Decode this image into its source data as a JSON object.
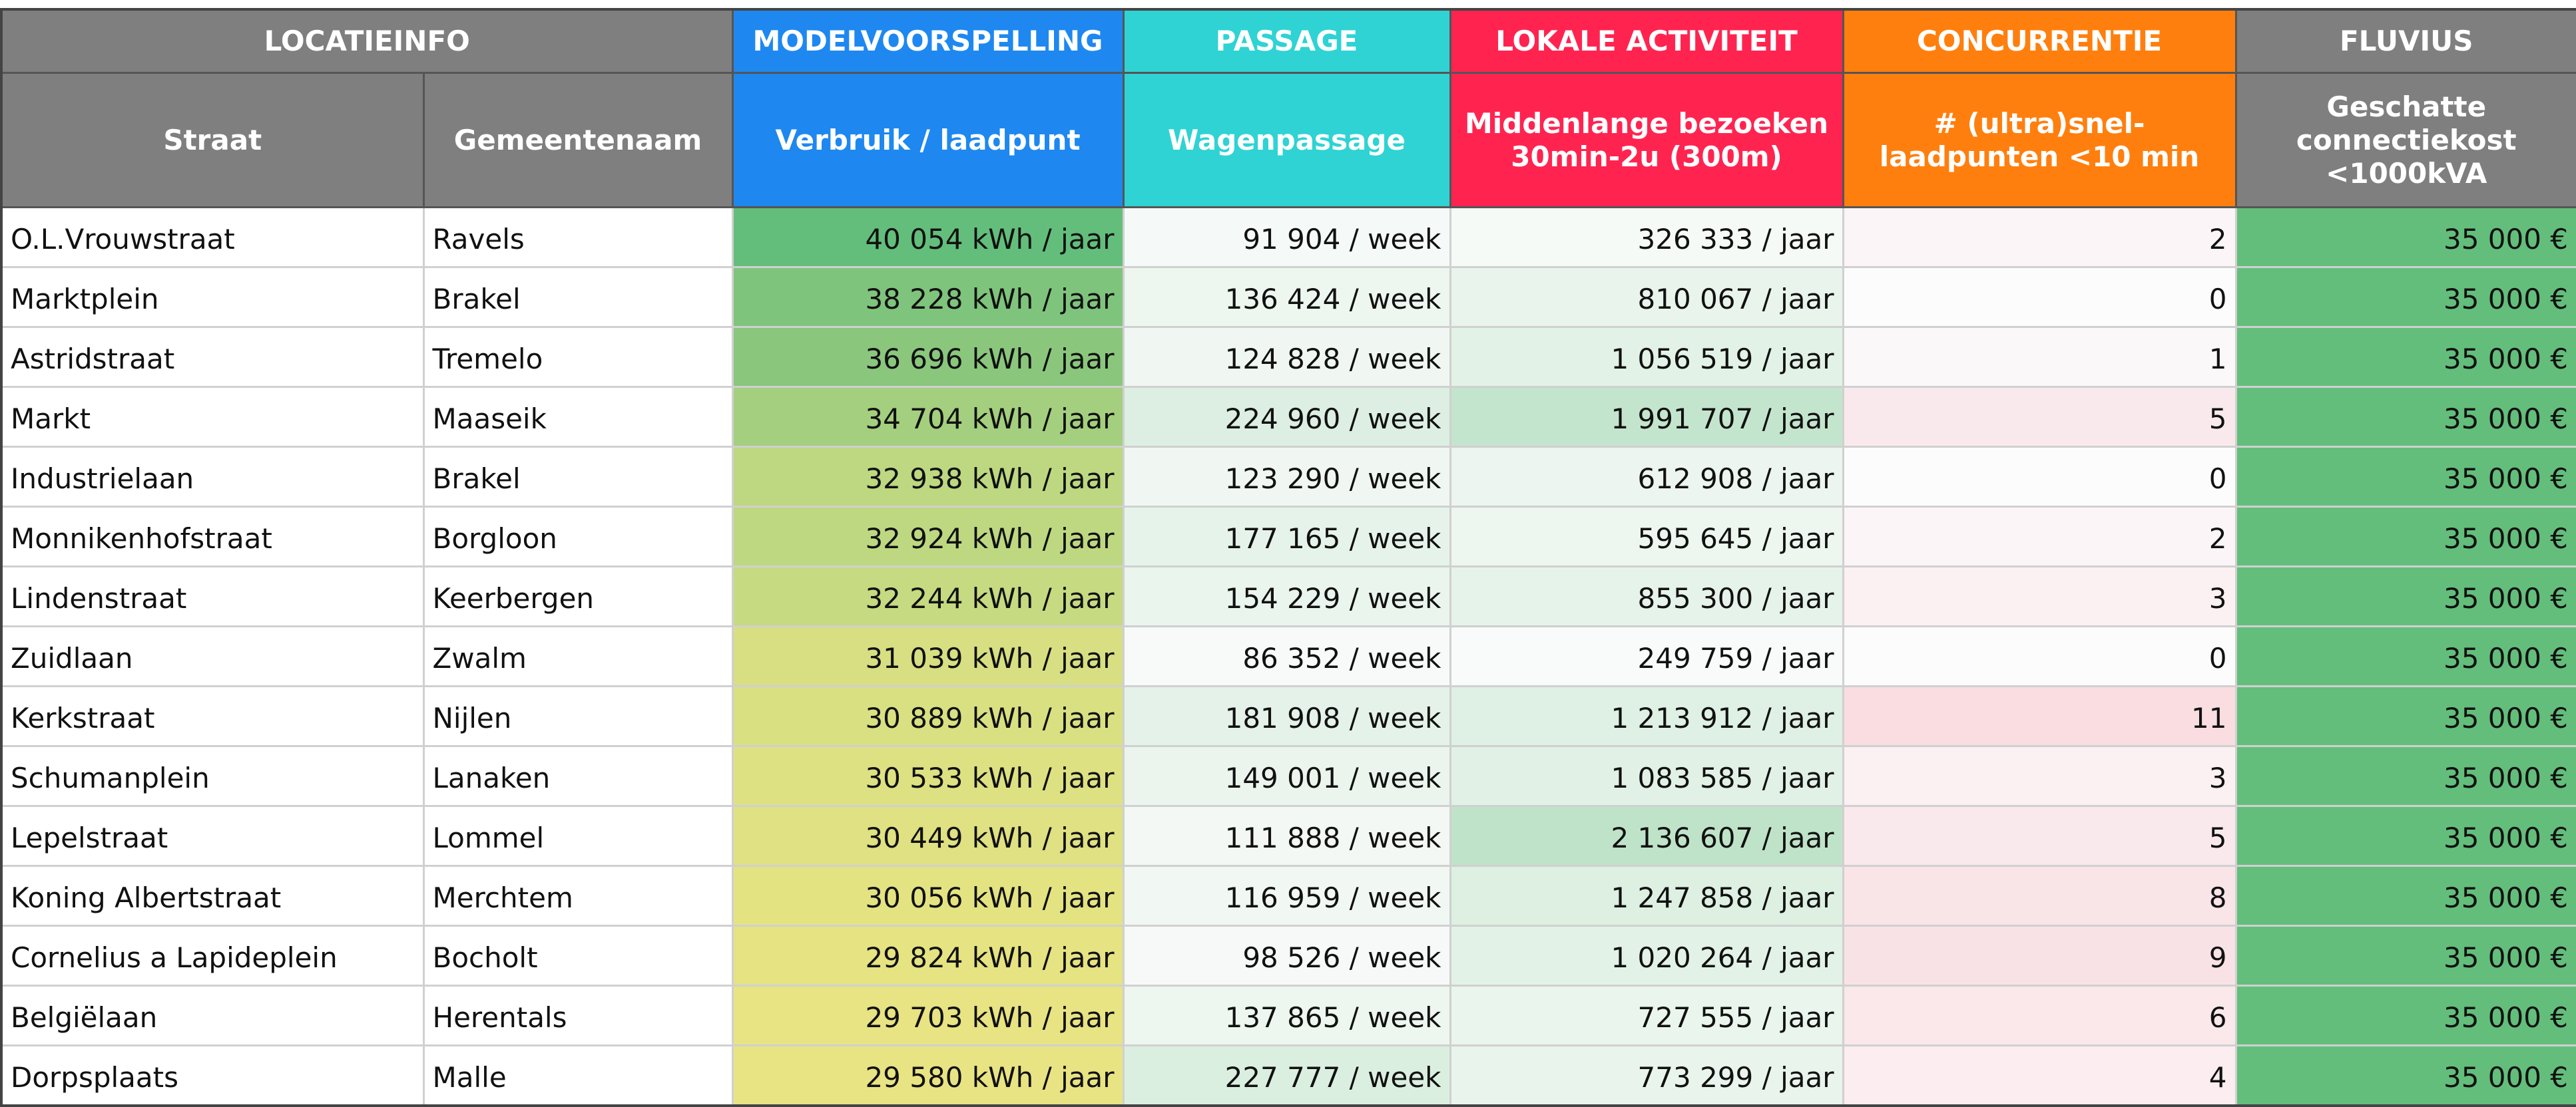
{
  "table": {
    "groups": [
      "LOCATIEINFO",
      "MODELVOORSPELLING",
      "PASSAGE",
      "LOKALE ACTIVITEIT",
      "CONCURRENTIE",
      "FLUVIUS"
    ],
    "headers": [
      "Straat",
      "Gemeentenaam",
      "Verbruik / laadpunt",
      "Wagenpassage",
      "Middenlange bezoeken 30min-2u (300m)",
      "# (ultra)snel-laadpunten <10 min",
      "Geschatte connectiekost <1000kVA"
    ],
    "rows": [
      [
        "O.L.Vrouwstraat",
        "Ravels",
        "40 054 kWh / jaar",
        "91 904 / week",
        "326 333 / jaar",
        "2",
        "35 000 €"
      ],
      [
        "Marktplein",
        "Brakel",
        "38 228 kWh / jaar",
        "136 424 / week",
        "810 067 / jaar",
        "0",
        "35 000 €"
      ],
      [
        "Astridstraat",
        "Tremelo",
        "36 696 kWh / jaar",
        "124 828 / week",
        "1 056 519 / jaar",
        "1",
        "35 000 €"
      ],
      [
        "Markt",
        "Maaseik",
        "34 704 kWh / jaar",
        "224 960 / week",
        "1 991 707 / jaar",
        "5",
        "35 000 €"
      ],
      [
        "Industrielaan",
        "Brakel",
        "32 938 kWh / jaar",
        "123 290 / week",
        "612 908 / jaar",
        "0",
        "35 000 €"
      ],
      [
        "Monnikenhofstraat",
        "Borgloon",
        "32 924 kWh / jaar",
        "177 165 / week",
        "595 645 / jaar",
        "2",
        "35 000 €"
      ],
      [
        "Lindenstraat",
        "Keerbergen",
        "32 244 kWh / jaar",
        "154 229 / week",
        "855 300 / jaar",
        "3",
        "35 000 €"
      ],
      [
        "Zuidlaan",
        "Zwalm",
        "31 039 kWh / jaar",
        "86 352 / week",
        "249 759 / jaar",
        "0",
        "35 000 €"
      ],
      [
        "Kerkstraat",
        "Nijlen",
        "30 889 kWh / jaar",
        "181 908 / week",
        "1 213 912 / jaar",
        "11",
        "35 000 €"
      ],
      [
        "Schumanplein",
        "Lanaken",
        "30 533 kWh / jaar",
        "149 001 / week",
        "1 083 585 / jaar",
        "3",
        "35 000 €"
      ],
      [
        "Lepelstraat",
        "Lommel",
        "30 449 kWh / jaar",
        "111 888 / week",
        "2 136 607 / jaar",
        "5",
        "35 000 €"
      ],
      [
        "Koning Albertstraat",
        "Merchtem",
        "30 056 kWh / jaar",
        "116 959 / week",
        "1 247 858 / jaar",
        "8",
        "35 000 €"
      ],
      [
        "Cornelius a Lapideplein",
        "Bocholt",
        "29 824 kWh / jaar",
        "98 526 / week",
        "1 020 264 / jaar",
        "9",
        "35 000 €"
      ],
      [
        "Belgiëlaan",
        "Herentals",
        "29 703 kWh / jaar",
        "137 865 / week",
        "727 555 / jaar",
        "6",
        "35 000 €"
      ],
      [
        "Dorpsplaats",
        "Malle",
        "29 580 kWh / jaar",
        "227 777 / week",
        "773 299 / jaar",
        "4",
        "35 000 €"
      ]
    ]
  }
}
